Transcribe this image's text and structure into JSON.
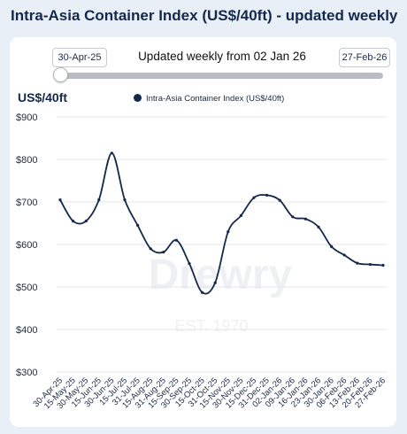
{
  "page_title": "Intra-Asia Container Index (US$/40ft) - updated weekly",
  "range": {
    "start_label": "30-Apr-25",
    "end_label": "27-Feb-26",
    "caption": "Updated weekly from 02 Jan 26"
  },
  "watermark": {
    "brand": "Drewry",
    "est": "EST. 1970"
  },
  "colors": {
    "line": "#14284b",
    "grid": "#e3e5e9",
    "background": "#e9eff6"
  },
  "chart_data": {
    "type": "line",
    "ylabel": "US$/40ft",
    "ylim": [
      300,
      900
    ],
    "yticks": [
      900,
      800,
      700,
      600,
      500,
      400,
      300
    ],
    "ytick_labels": [
      "$900",
      "$800",
      "$700",
      "$600",
      "$500",
      "$400",
      "$300"
    ],
    "grid": true,
    "legend_position": "top",
    "categories": [
      "30-Apr-25",
      "15-May-25",
      "30-May-25",
      "15-Jun-25",
      "30-Jun-25",
      "15-Jul-25",
      "31-Jul-25",
      "15-Aug-25",
      "31-Aug-25",
      "15-Sep-25",
      "30-Sep-25",
      "15-Oct-25",
      "31-Oct-25",
      "15-Nov-25",
      "30-Nov-25",
      "15-Dec-25",
      "31-Dec-25",
      "02-Jan-26",
      "09-Jan-26",
      "16-Jan-26",
      "23-Jan-26",
      "30-Jan-26",
      "06-Feb-26",
      "13-Feb-26",
      "20-Feb-26",
      "27-Feb-26"
    ],
    "series": [
      {
        "name": "Intra-Asia Container Index (US$/40ft)",
        "values": [
          705,
          655,
          655,
          705,
          815,
          705,
          645,
          590,
          582,
          610,
          555,
          487,
          510,
          630,
          668,
          710,
          716,
          704,
          665,
          660,
          641,
          595,
          575,
          556,
          553,
          551
        ]
      }
    ]
  }
}
